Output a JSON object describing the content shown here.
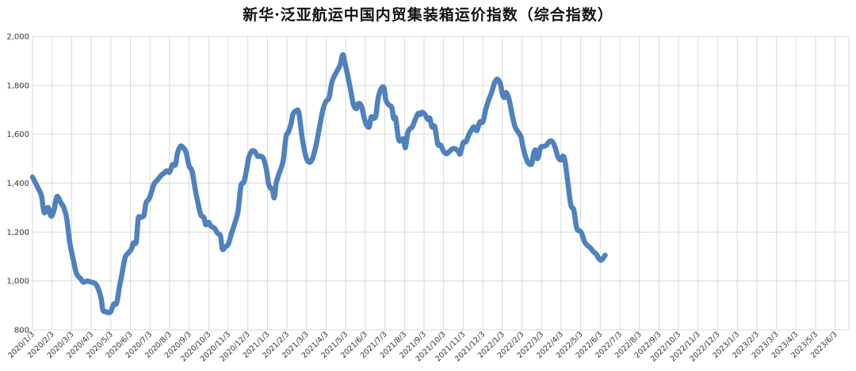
{
  "chart_data": {
    "type": "line",
    "title": "新华·泛亚航运中国内贸集装箱运价指数（综合指数）",
    "xlabel": "",
    "ylabel": "",
    "ylim": [
      800,
      2000
    ],
    "yticks": [
      800,
      1000,
      1200,
      1400,
      1600,
      1800,
      2000
    ],
    "ytick_labels": [
      "800",
      "1,000",
      "1,200",
      "1,400",
      "1,600",
      "1,800",
      "2,000"
    ],
    "grid": true,
    "legend": "none",
    "line_color": "#4f81bd",
    "xtick_labels": [
      "2020/1/3",
      "2020/2/3",
      "2020/3/3",
      "2020/4/3",
      "2020/5/3",
      "2020/6/3",
      "2020/7/3",
      "2020/8/3",
      "2020/9/3",
      "2020/10/3",
      "2020/11/3",
      "2020/12/3",
      "2021/1/3",
      "2021/2/3",
      "2021/3/3",
      "2021/4/3",
      "2021/5/3",
      "2021/6/3",
      "2021/7/3",
      "2021/8/3",
      "2021/9/3",
      "2021/10/3",
      "2021/11/3",
      "2021/12/3",
      "2022/1/3",
      "2022/2/3",
      "2022/3/3",
      "2022/4/3",
      "2022/5/3",
      "2022/6/3",
      "2022/7/3",
      "2022/8/3",
      "2022/9/3",
      "2022/10/3",
      "2022/11/3",
      "2022/12/3",
      "2023/1/3",
      "2023/2/3",
      "2023/3/3",
      "2023/4/3",
      "2023/5/3",
      "2023/6/3"
    ],
    "series": [
      {
        "values": [
          [
            0,
            1425
          ],
          [
            0.25,
            1385
          ],
          [
            0.45,
            1350
          ],
          [
            0.6,
            1280
          ],
          [
            0.8,
            1300
          ],
          [
            0.95,
            1265
          ],
          [
            1.1,
            1290
          ],
          [
            1.25,
            1345
          ],
          [
            1.45,
            1320
          ],
          [
            1.6,
            1300
          ],
          [
            1.75,
            1255
          ],
          [
            1.9,
            1160
          ],
          [
            2.1,
            1080
          ],
          [
            2.25,
            1030
          ],
          [
            2.45,
            1010
          ],
          [
            2.6,
            995
          ],
          [
            2.8,
            1000
          ],
          [
            3.0,
            995
          ],
          [
            3.2,
            990
          ],
          [
            3.35,
            970
          ],
          [
            3.5,
            930
          ],
          [
            3.6,
            880
          ],
          [
            3.75,
            875
          ],
          [
            3.85,
            870
          ],
          [
            4.0,
            875
          ],
          [
            4.15,
            905
          ],
          [
            4.3,
            910
          ],
          [
            4.45,
            980
          ],
          [
            4.55,
            1020
          ],
          [
            4.65,
            1065
          ],
          [
            4.75,
            1100
          ],
          [
            4.9,
            1115
          ],
          [
            5.05,
            1130
          ],
          [
            5.15,
            1155
          ],
          [
            5.3,
            1160
          ],
          [
            5.4,
            1255
          ],
          [
            5.55,
            1260
          ],
          [
            5.7,
            1270
          ],
          [
            5.8,
            1320
          ],
          [
            5.95,
            1335
          ],
          [
            6.1,
            1370
          ],
          [
            6.2,
            1395
          ],
          [
            6.4,
            1415
          ],
          [
            6.55,
            1430
          ],
          [
            6.7,
            1440
          ],
          [
            6.85,
            1450
          ],
          [
            7.0,
            1445
          ],
          [
            7.15,
            1475
          ],
          [
            7.3,
            1475
          ],
          [
            7.4,
            1520
          ],
          [
            7.55,
            1550
          ],
          [
            7.7,
            1545
          ],
          [
            7.85,
            1525
          ],
          [
            8.0,
            1470
          ],
          [
            8.15,
            1450
          ],
          [
            8.3,
            1380
          ],
          [
            8.45,
            1320
          ],
          [
            8.6,
            1270
          ],
          [
            8.75,
            1260
          ],
          [
            8.85,
            1230
          ],
          [
            9.0,
            1240
          ],
          [
            9.1,
            1225
          ],
          [
            9.3,
            1215
          ],
          [
            9.45,
            1195
          ],
          [
            9.6,
            1185
          ],
          [
            9.7,
            1130
          ],
          [
            9.85,
            1140
          ],
          [
            10.0,
            1150
          ],
          [
            10.15,
            1190
          ],
          [
            10.35,
            1240
          ],
          [
            10.5,
            1285
          ],
          [
            10.65,
            1390
          ],
          [
            10.8,
            1405
          ],
          [
            10.95,
            1460
          ],
          [
            11.05,
            1505
          ],
          [
            11.2,
            1530
          ],
          [
            11.35,
            1530
          ],
          [
            11.5,
            1510
          ],
          [
            11.65,
            1510
          ],
          [
            11.8,
            1500
          ],
          [
            11.95,
            1455
          ],
          [
            12.05,
            1400
          ],
          [
            12.15,
            1380
          ],
          [
            12.25,
            1375
          ],
          [
            12.35,
            1340
          ],
          [
            12.45,
            1400
          ],
          [
            12.6,
            1440
          ],
          [
            12.8,
            1490
          ],
          [
            12.95,
            1590
          ],
          [
            13.05,
            1605
          ],
          [
            13.2,
            1640
          ],
          [
            13.3,
            1680
          ],
          [
            13.45,
            1695
          ],
          [
            13.6,
            1690
          ],
          [
            13.75,
            1600
          ],
          [
            13.85,
            1550
          ],
          [
            14.0,
            1500
          ],
          [
            14.15,
            1485
          ],
          [
            14.3,
            1500
          ],
          [
            14.5,
            1560
          ],
          [
            14.65,
            1625
          ],
          [
            14.85,
            1705
          ],
          [
            15.0,
            1735
          ],
          [
            15.15,
            1750
          ],
          [
            15.3,
            1815
          ],
          [
            15.5,
            1850
          ],
          [
            15.7,
            1880
          ],
          [
            15.85,
            1925
          ],
          [
            15.95,
            1895
          ],
          [
            16.1,
            1840
          ],
          [
            16.25,
            1780
          ],
          [
            16.4,
            1720
          ],
          [
            16.55,
            1705
          ],
          [
            16.65,
            1725
          ],
          [
            16.8,
            1715
          ],
          [
            16.95,
            1665
          ],
          [
            17.05,
            1640
          ],
          [
            17.2,
            1630
          ],
          [
            17.3,
            1670
          ],
          [
            17.45,
            1665
          ],
          [
            17.55,
            1680
          ],
          [
            17.65,
            1745
          ],
          [
            17.8,
            1785
          ],
          [
            17.95,
            1790
          ],
          [
            18.05,
            1740
          ],
          [
            18.2,
            1720
          ],
          [
            18.35,
            1710
          ],
          [
            18.45,
            1665
          ],
          [
            18.55,
            1665
          ],
          [
            18.7,
            1580
          ],
          [
            18.85,
            1575
          ],
          [
            18.95,
            1580
          ],
          [
            19.05,
            1545
          ],
          [
            19.15,
            1600
          ],
          [
            19.25,
            1620
          ],
          [
            19.4,
            1630
          ],
          [
            19.55,
            1660
          ],
          [
            19.7,
            1685
          ],
          [
            19.8,
            1680
          ],
          [
            19.9,
            1690
          ],
          [
            20.05,
            1680
          ],
          [
            20.2,
            1660
          ],
          [
            20.3,
            1665
          ],
          [
            20.4,
            1630
          ],
          [
            20.55,
            1630
          ],
          [
            20.7,
            1560
          ],
          [
            20.85,
            1555
          ],
          [
            21.0,
            1530
          ],
          [
            21.15,
            1520
          ],
          [
            21.3,
            1530
          ],
          [
            21.45,
            1540
          ],
          [
            21.6,
            1540
          ],
          [
            21.75,
            1530
          ],
          [
            21.85,
            1520
          ],
          [
            22.0,
            1565
          ],
          [
            22.15,
            1570
          ],
          [
            22.3,
            1600
          ],
          [
            22.45,
            1620
          ],
          [
            22.55,
            1630
          ],
          [
            22.7,
            1615
          ],
          [
            22.85,
            1650
          ],
          [
            23.0,
            1650
          ],
          [
            23.15,
            1700
          ],
          [
            23.3,
            1740
          ],
          [
            23.45,
            1770
          ],
          [
            23.6,
            1810
          ],
          [
            23.75,
            1825
          ],
          [
            23.9,
            1805
          ],
          [
            24.0,
            1765
          ],
          [
            24.1,
            1750
          ],
          [
            24.2,
            1770
          ],
          [
            24.35,
            1740
          ],
          [
            24.5,
            1680
          ],
          [
            24.65,
            1630
          ],
          [
            24.8,
            1610
          ],
          [
            24.95,
            1590
          ],
          [
            25.05,
            1550
          ],
          [
            25.2,
            1505
          ],
          [
            25.35,
            1480
          ],
          [
            25.5,
            1480
          ],
          [
            25.6,
            1520
          ],
          [
            25.7,
            1535
          ],
          [
            25.8,
            1500
          ],
          [
            25.95,
            1545
          ],
          [
            26.1,
            1550
          ],
          [
            26.25,
            1555
          ],
          [
            26.4,
            1570
          ],
          [
            26.55,
            1570
          ],
          [
            26.7,
            1545
          ],
          [
            26.85,
            1505
          ],
          [
            27.0,
            1495
          ],
          [
            27.1,
            1510
          ],
          [
            27.2,
            1490
          ],
          [
            27.35,
            1400
          ],
          [
            27.5,
            1310
          ],
          [
            27.65,
            1290
          ],
          [
            27.8,
            1215
          ],
          [
            27.95,
            1205
          ],
          [
            28.05,
            1195
          ],
          [
            28.2,
            1160
          ],
          [
            28.35,
            1145
          ],
          [
            28.5,
            1135
          ],
          [
            28.65,
            1120
          ],
          [
            28.8,
            1110
          ],
          [
            28.9,
            1095
          ],
          [
            29.05,
            1085
          ],
          [
            29.25,
            1105
          ]
        ]
      }
    ]
  }
}
